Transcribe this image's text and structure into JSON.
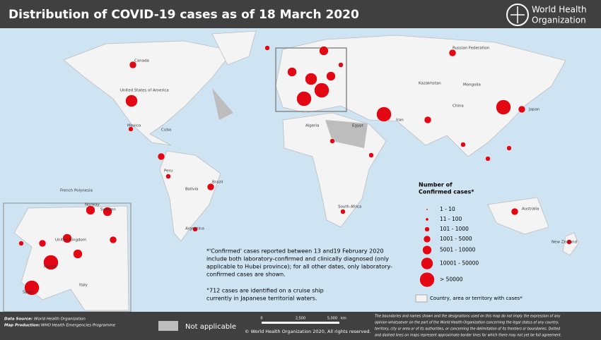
{
  "header": {
    "title": "Distribution of COVID-19  cases as of 18 March 2020",
    "org": [
      "World Health",
      "Organization"
    ]
  },
  "legend": {
    "title": [
      "Number of",
      "Confirmed cases*"
    ],
    "classes": [
      "1 - 10",
      "11 - 100",
      "101 - 1000",
      "1001 - 5000",
      "5001 - 10000",
      "10001 - 50000",
      "> 50000"
    ],
    "territory": "Country, area or territory with cases*"
  },
  "notes": {
    "confirmed": [
      "*'Confirmed' cases reported between 13 and19 February 2020",
      "include both laboratory-confirmed and clinically diagnosed (only",
      "applicable to Hubei province); for all other dates, only laboratory-",
      "confirmed cases are shown."
    ],
    "cruise": [
      "°712 cases are identified on a cruise ship",
      "currently in Japanese territorial waters."
    ]
  },
  "labels": [
    "Canada",
    "United States of America",
    "Mexico",
    "Cuba",
    "Brazil",
    "Peru",
    "Bolivia",
    "Argentina",
    "French Polynesia",
    "Russian Federation",
    "Kazakhstan",
    "Mongolia",
    "China",
    "Japan",
    "Iran",
    "Algeria",
    "Egypt",
    "South Africa",
    "Australia",
    "New Zealand",
    "Norway",
    "Sweden",
    "United Kingdom",
    "France",
    "Italy",
    "Spain"
  ],
  "footer": {
    "data_source_label": "Data Source:",
    "data_source": "World Health Organization",
    "production_label": "Map Production:",
    "production": "WHO Health Emergencies Programme",
    "not_applicable": "Not applicable",
    "scale": [
      "0",
      "2,500",
      "5,000"
    ],
    "scale_unit": "km",
    "copyright": "© World Health Organization  2020, All rights reserved.",
    "disclaimer": [
      "The boundaries and names shown and the designations used on this map do not imply the expression of any",
      "opinion whatsoever on the part of the World Health Organization concerning the legal status of any country,",
      "territory, city or area or of its authorities, or concerning the delimitation of its frontiers or boundaries. Dotted",
      "and dashed lines on maps represent approximate border lines for which there may not yet be full agreement."
    ]
  }
}
